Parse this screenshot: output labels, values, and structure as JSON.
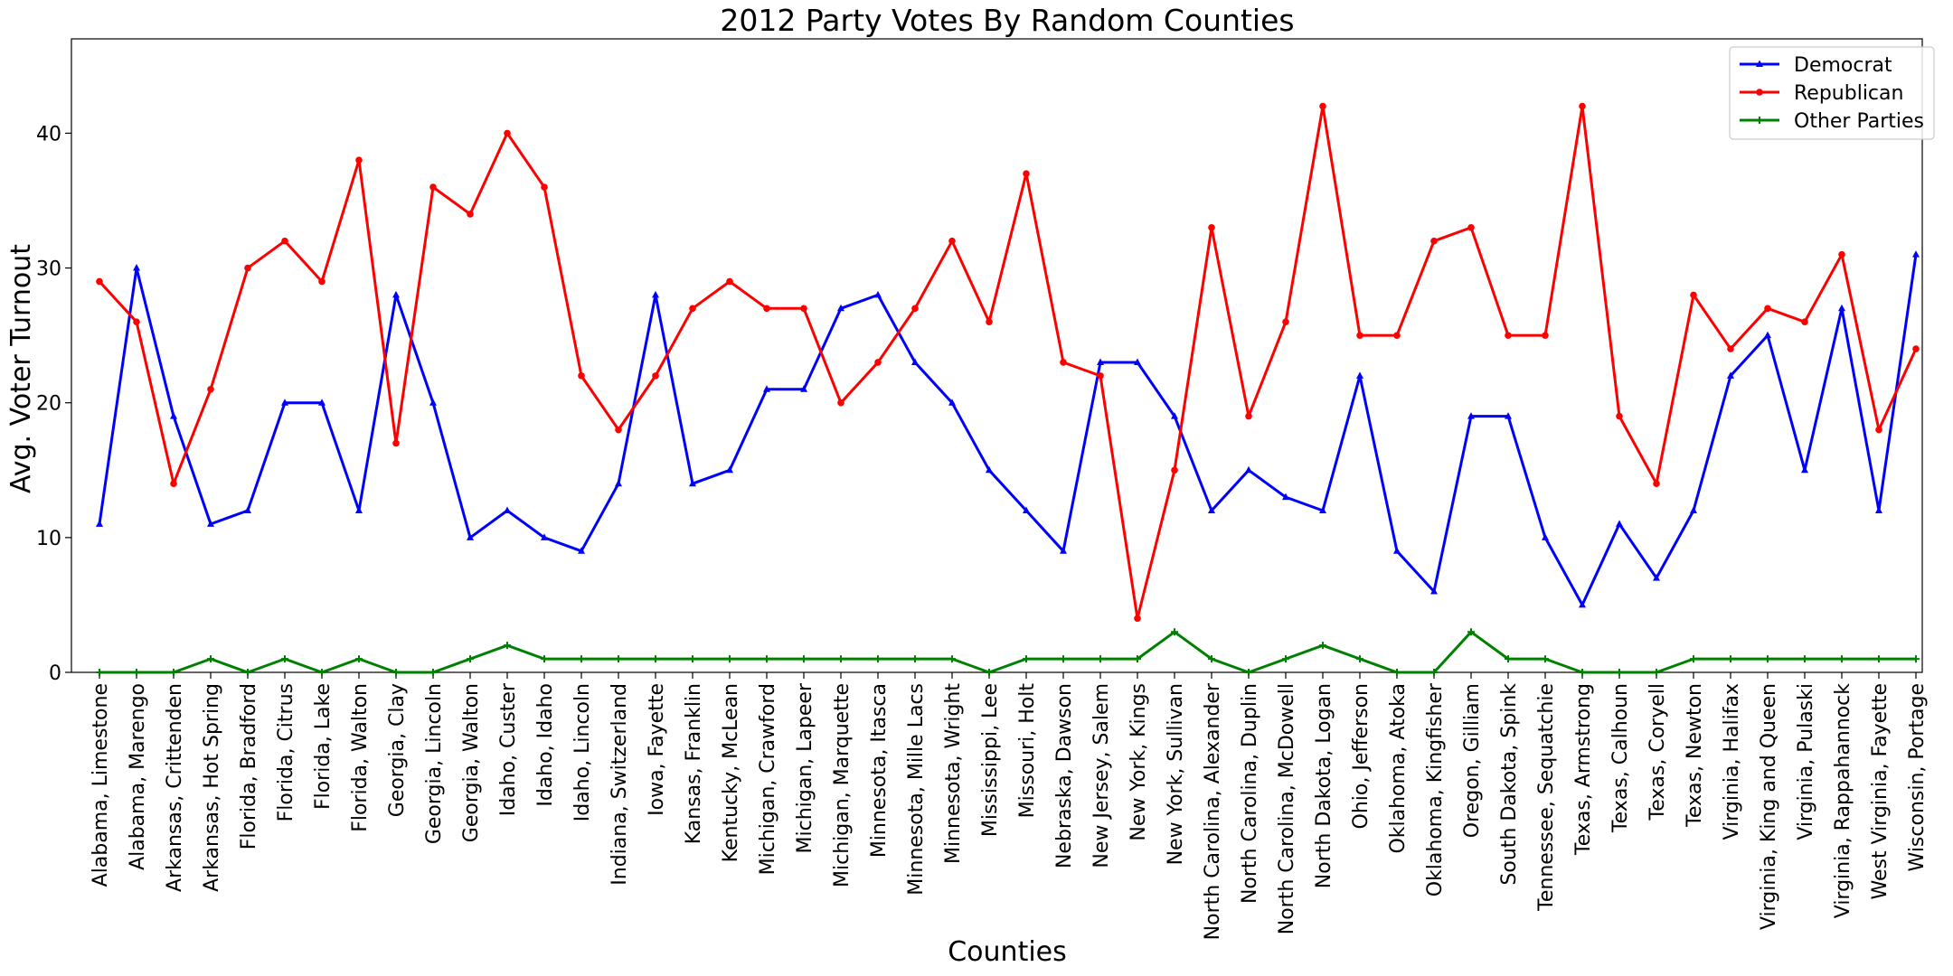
{
  "chart_data": {
    "type": "line",
    "title": "2012 Party Votes By Random Counties",
    "xlabel": "Counties",
    "ylabel": "Avg. Voter Turnout",
    "ylim": [
      0,
      47
    ],
    "yticks": [
      0,
      10,
      20,
      30,
      40
    ],
    "grid": false,
    "legend_position": "top-right",
    "categories": [
      "Alabama, Limestone",
      "Alabama, Marengo",
      "Arkansas, Crittenden",
      "Arkansas, Hot Spring",
      "Florida, Bradford",
      "Florida, Citrus",
      "Florida, Lake",
      "Florida, Walton",
      "Georgia, Clay",
      "Georgia, Lincoln",
      "Georgia, Walton",
      "Idaho, Custer",
      "Idaho, Idaho",
      "Idaho, Lincoln",
      "Indiana, Switzerland",
      "Iowa, Fayette",
      "Kansas, Franklin",
      "Kentucky, McLean",
      "Michigan, Crawford",
      "Michigan, Lapeer",
      "Michigan, Marquette",
      "Minnesota, Itasca",
      "Minnesota, Mille Lacs",
      "Minnesota, Wright",
      "Mississippi, Lee",
      "Missouri, Holt",
      "Nebraska, Dawson",
      "New Jersey, Salem",
      "New York, Kings",
      "New York, Sullivan",
      "North Carolina, Alexander",
      "North Carolina, Duplin",
      "North Carolina, McDowell",
      "North Dakota, Logan",
      "Ohio, Jefferson",
      "Oklahoma, Atoka",
      "Oklahoma, Kingfisher",
      "Oregon, Gilliam",
      "South Dakota, Spink",
      "Tennessee, Sequatchie",
      "Texas, Armstrong",
      "Texas, Calhoun",
      "Texas, Coryell",
      "Texas, Newton",
      "Virginia, Halifax",
      "Virginia, King and Queen",
      "Virginia, Pulaski",
      "Virginia, Rappahannock",
      "West Virginia, Fayette",
      "Wisconsin, Portage"
    ],
    "series": [
      {
        "name": "Democrat",
        "color": "#0000ff",
        "marker": "triangle",
        "values": [
          11,
          30,
          19,
          11,
          12,
          20,
          20,
          12,
          28,
          20,
          10,
          12,
          10,
          9,
          14,
          28,
          14,
          15,
          21,
          21,
          27,
          28,
          23,
          20,
          15,
          12,
          9,
          23,
          23,
          19,
          12,
          15,
          13,
          12,
          22,
          9,
          6,
          19,
          19,
          10,
          5,
          11,
          7,
          12,
          22,
          25,
          15,
          27,
          12,
          31
        ]
      },
      {
        "name": "Republican",
        "color": "#ff0000",
        "marker": "circle",
        "values": [
          29,
          26,
          14,
          21,
          30,
          32,
          29,
          38,
          17,
          36,
          34,
          40,
          36,
          22,
          18,
          22,
          27,
          29,
          27,
          27,
          20,
          23,
          27,
          32,
          26,
          37,
          23,
          22,
          4,
          15,
          33,
          19,
          26,
          42,
          25,
          25,
          32,
          33,
          25,
          25,
          42,
          19,
          14,
          28,
          24,
          27,
          26,
          31,
          18,
          24
        ]
      },
      {
        "name": "Other Parties",
        "color": "#008000",
        "marker": "plus",
        "values": [
          0,
          0,
          0,
          1,
          0,
          1,
          0,
          1,
          0,
          0,
          1,
          2,
          1,
          1,
          1,
          1,
          1,
          1,
          1,
          1,
          1,
          1,
          1,
          1,
          0,
          1,
          1,
          1,
          1,
          3,
          1,
          0,
          1,
          2,
          1,
          0,
          0,
          3,
          1,
          1,
          0,
          0,
          0,
          1,
          1,
          1,
          1,
          1,
          1,
          1
        ]
      }
    ]
  }
}
